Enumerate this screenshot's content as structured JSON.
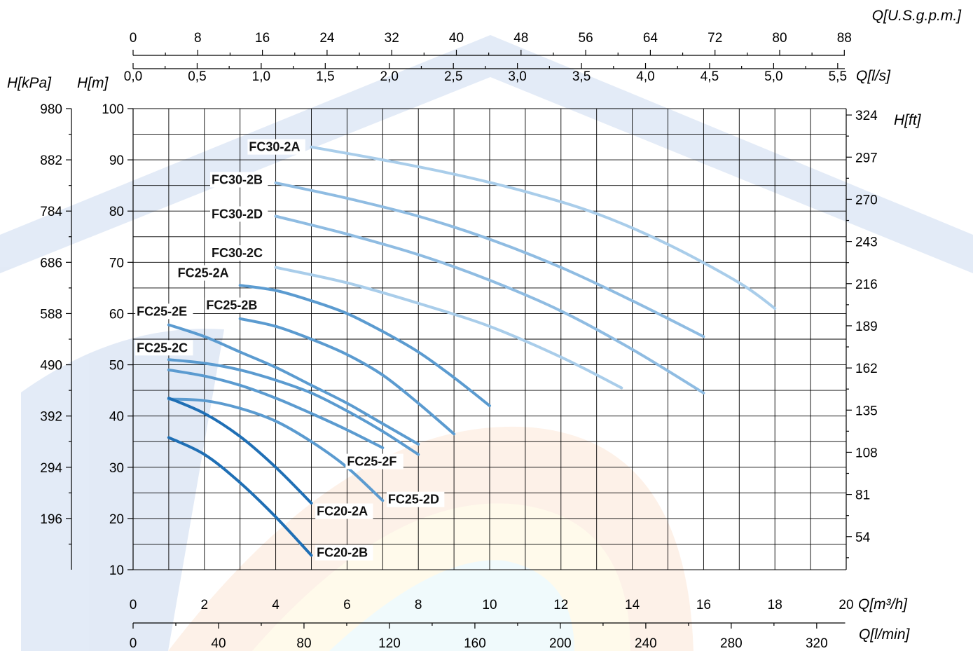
{
  "chart_data": {
    "type": "line",
    "title": "",
    "grid": true,
    "x_primary": {
      "label": "Q[m³/h]",
      "range": [
        0,
        20
      ],
      "ticks": [
        "0",
        "2",
        "4",
        "6",
        "8",
        "10",
        "12",
        "14",
        "16",
        "18",
        "20"
      ]
    },
    "x_lmin": {
      "label": "Q[l/min]",
      "range": [
        0,
        333.33
      ],
      "ticks": [
        "0",
        "40",
        "80",
        "120",
        "160",
        "200",
        "240",
        "280",
        "320"
      ]
    },
    "x_ls": {
      "label": "Q[l/s]",
      "range": [
        0,
        5.5556
      ],
      "ticks": [
        "0,0",
        "0,5",
        "1,0",
        "1,5",
        "2,0",
        "2,5",
        "3,0",
        "3,5",
        "4,0",
        "4,5",
        "5,0",
        "5,5"
      ]
    },
    "x_usgpm": {
      "label": "Q[U.S.g.p.m.]",
      "range": [
        0,
        88.06
      ],
      "ticks": [
        "0",
        "8",
        "16",
        "24",
        "32",
        "40",
        "48",
        "56",
        "64",
        "72",
        "80",
        "88"
      ]
    },
    "y_primary": {
      "label": "H[m]",
      "range": [
        10,
        100
      ],
      "ticks": [
        "10",
        "20",
        "30",
        "40",
        "50",
        "60",
        "70",
        "80",
        "90",
        "100"
      ]
    },
    "y_kpa": {
      "label": "H[kPa]",
      "ticks": [
        "196",
        "294",
        "392",
        "490",
        "588",
        "686",
        "784",
        "882",
        "980"
      ],
      "tick_h_m": [
        20,
        30,
        40,
        50,
        60,
        70,
        80,
        90,
        100
      ]
    },
    "y_ft": {
      "label": "H[ft]",
      "ticks": [
        "54",
        "81",
        "108",
        "135",
        "162",
        "189",
        "216",
        "243",
        "270",
        "297",
        "324"
      ]
    },
    "colors": {
      "grid": "#000000",
      "dark_blue": "#1f6fb5",
      "mid_blue": "#5b9bd0",
      "light_blue": "#a9cdea"
    },
    "series": [
      {
        "name": "FC30-2A",
        "color": "#a9cdea",
        "x": [
          5,
          7,
          9,
          11,
          13,
          15,
          17,
          18
        ],
        "y": [
          92.5,
          90.0,
          87.2,
          83.8,
          79.5,
          73.5,
          66.0,
          61.0
        ]
      },
      {
        "name": "FC30-2B",
        "color": "#8fbce2",
        "x": [
          4,
          6,
          8,
          10,
          12,
          14,
          16
        ],
        "y": [
          85.5,
          82.5,
          79.0,
          74.5,
          69.0,
          62.5,
          55.5
        ]
      },
      {
        "name": "FC30-2D",
        "color": "#8fbce2",
        "x": [
          4,
          6,
          8,
          10,
          12,
          14,
          16
        ],
        "y": [
          79.0,
          75.5,
          71.5,
          66.5,
          60.5,
          53.0,
          44.5
        ]
      },
      {
        "name": "FC30-2C",
        "color": "#a9cdea",
        "x": [
          4,
          6,
          8,
          10,
          12,
          13.7
        ],
        "y": [
          69.0,
          66.0,
          62.0,
          57.5,
          51.5,
          45.5
        ]
      },
      {
        "name": "FC25-2A",
        "color": "#5b9bd0",
        "x": [
          3,
          4,
          5,
          6,
          7,
          8,
          9,
          10
        ],
        "y": [
          65.5,
          64.5,
          62.5,
          60.0,
          56.5,
          52.5,
          47.5,
          42.0
        ]
      },
      {
        "name": "FC25-2B",
        "color": "#5b9bd0",
        "x": [
          3,
          4,
          5,
          6,
          7,
          8,
          9
        ],
        "y": [
          59.0,
          57.5,
          55.0,
          52.0,
          48.0,
          42.5,
          36.5
        ]
      },
      {
        "name": "FC25-2E",
        "color": "#5b9bd0",
        "x": [
          1,
          2,
          3,
          4,
          5,
          6,
          7,
          8
        ],
        "y": [
          57.8,
          55.5,
          52.5,
          49.5,
          46.0,
          42.5,
          38.5,
          34.5
        ]
      },
      {
        "name": "FC25-2C",
        "color": "#5b9bd0",
        "x": [
          1,
          2,
          3,
          4,
          5,
          6,
          7,
          8
        ],
        "y": [
          51.0,
          50.3,
          49.0,
          47.0,
          44.5,
          41.0,
          37.0,
          32.5
        ]
      },
      {
        "name": "FC25-2F",
        "color": "#5b9bd0",
        "x": [
          1,
          2,
          3,
          4,
          5,
          6,
          7
        ],
        "y": [
          49.0,
          47.8,
          46.0,
          43.5,
          40.5,
          37.3,
          33.8
        ]
      },
      {
        "name": "FC25-2D",
        "color": "#5b9bd0",
        "x": [
          1,
          2,
          3,
          4,
          5,
          6,
          7
        ],
        "y": [
          43.3,
          43.0,
          41.5,
          39.0,
          35.0,
          30.0,
          23.5
        ]
      },
      {
        "name": "FC20-2A",
        "color": "#1f6fb5",
        "x": [
          1,
          2,
          3,
          4,
          5
        ],
        "y": [
          43.5,
          40.5,
          36.0,
          30.0,
          23.0
        ]
      },
      {
        "name": "FC20-2B",
        "color": "#1f6fb5",
        "x": [
          1,
          2,
          3,
          4,
          5
        ],
        "y": [
          35.8,
          32.5,
          27.0,
          20.3,
          12.8
        ]
      }
    ],
    "labels": [
      {
        "text": "FC30-2A",
        "qx": 3.25,
        "hy": 91.7
      },
      {
        "text": "FC30-2B",
        "qx": 2.2,
        "hy": 85.3
      },
      {
        "text": "FC30-2D",
        "qx": 2.2,
        "hy": 78.6
      },
      {
        "text": "FC30-2C",
        "qx": 2.2,
        "hy": 71.0
      },
      {
        "text": "FC25-2A",
        "qx": 1.25,
        "hy": 67.1
      },
      {
        "text": "FC25-2B",
        "qx": 2.05,
        "hy": 60.8
      },
      {
        "text": "FC25-2E",
        "qx": 0.1,
        "hy": 59.6
      },
      {
        "text": "FC25-2C",
        "qx": 0.1,
        "hy": 52.5
      },
      {
        "text": "FC25-2F",
        "qx": 6.0,
        "hy": 30.3
      },
      {
        "text": "FC25-2D",
        "qx": 7.15,
        "hy": 22.9
      },
      {
        "text": "FC20-2A",
        "qx": 5.15,
        "hy": 20.6
      },
      {
        "text": "FC20-2B",
        "qx": 5.15,
        "hy": 12.5
      }
    ]
  }
}
